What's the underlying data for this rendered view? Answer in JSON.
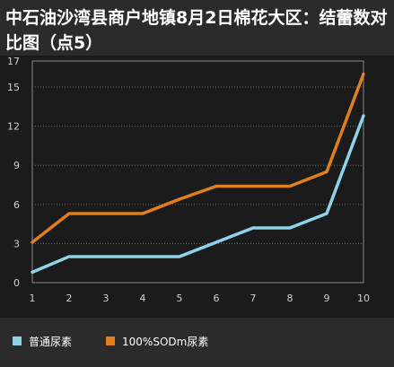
{
  "title": "中石油沙湾县商户地镇8月2日棉花大区：结蕾数对比图（点5）",
  "colors": {
    "series1": "#8fd3ea",
    "series2": "#e07f1d",
    "grid": "#6a6a6a",
    "tick": "#cfcfcf"
  },
  "chart_data": {
    "type": "line",
    "title": "中石油沙湾县商户地镇8月2日棉花大区：结蕾数对比图（点5）",
    "x": [
      1,
      2,
      3,
      4,
      5,
      6,
      7,
      8,
      9,
      10
    ],
    "yticks": [
      0,
      3,
      6,
      9,
      12,
      15,
      17
    ],
    "ylim": [
      0,
      17
    ],
    "grid": true,
    "legend": "bottom-left",
    "series": [
      {
        "name": "普通尿素",
        "values": [
          0.8,
          2.0,
          2.0,
          2.0,
          2.0,
          3.1,
          4.2,
          4.2,
          5.3,
          12.8
        ]
      },
      {
        "name": "100%SODm尿素",
        "values": [
          3.1,
          5.3,
          5.3,
          5.3,
          6.4,
          7.4,
          7.4,
          7.4,
          8.5,
          16.0
        ]
      }
    ]
  }
}
